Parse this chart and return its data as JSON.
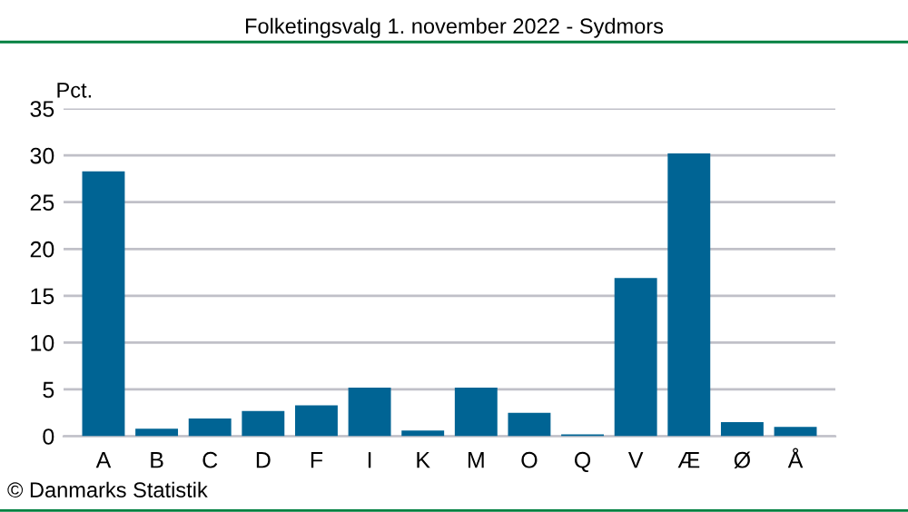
{
  "chart_data": {
    "type": "bar",
    "title": "Folketingsvalg 1. november 2022 - Sydmors",
    "ylabel": "Pct.",
    "categories": [
      "A",
      "B",
      "C",
      "D",
      "F",
      "I",
      "K",
      "M",
      "O",
      "Q",
      "V",
      "Æ",
      "Ø",
      "Å"
    ],
    "values": [
      28.3,
      0.8,
      1.9,
      2.7,
      3.3,
      5.2,
      0.6,
      5.2,
      2.5,
      0.2,
      16.9,
      30.2,
      1.5,
      1.0
    ],
    "color": "#006494",
    "ylim": [
      0,
      35
    ],
    "yticks": [
      0,
      5,
      10,
      15,
      20,
      25,
      30,
      35
    ],
    "grid": "y",
    "annotations": [
      "© Danmarks Statistik"
    ]
  }
}
